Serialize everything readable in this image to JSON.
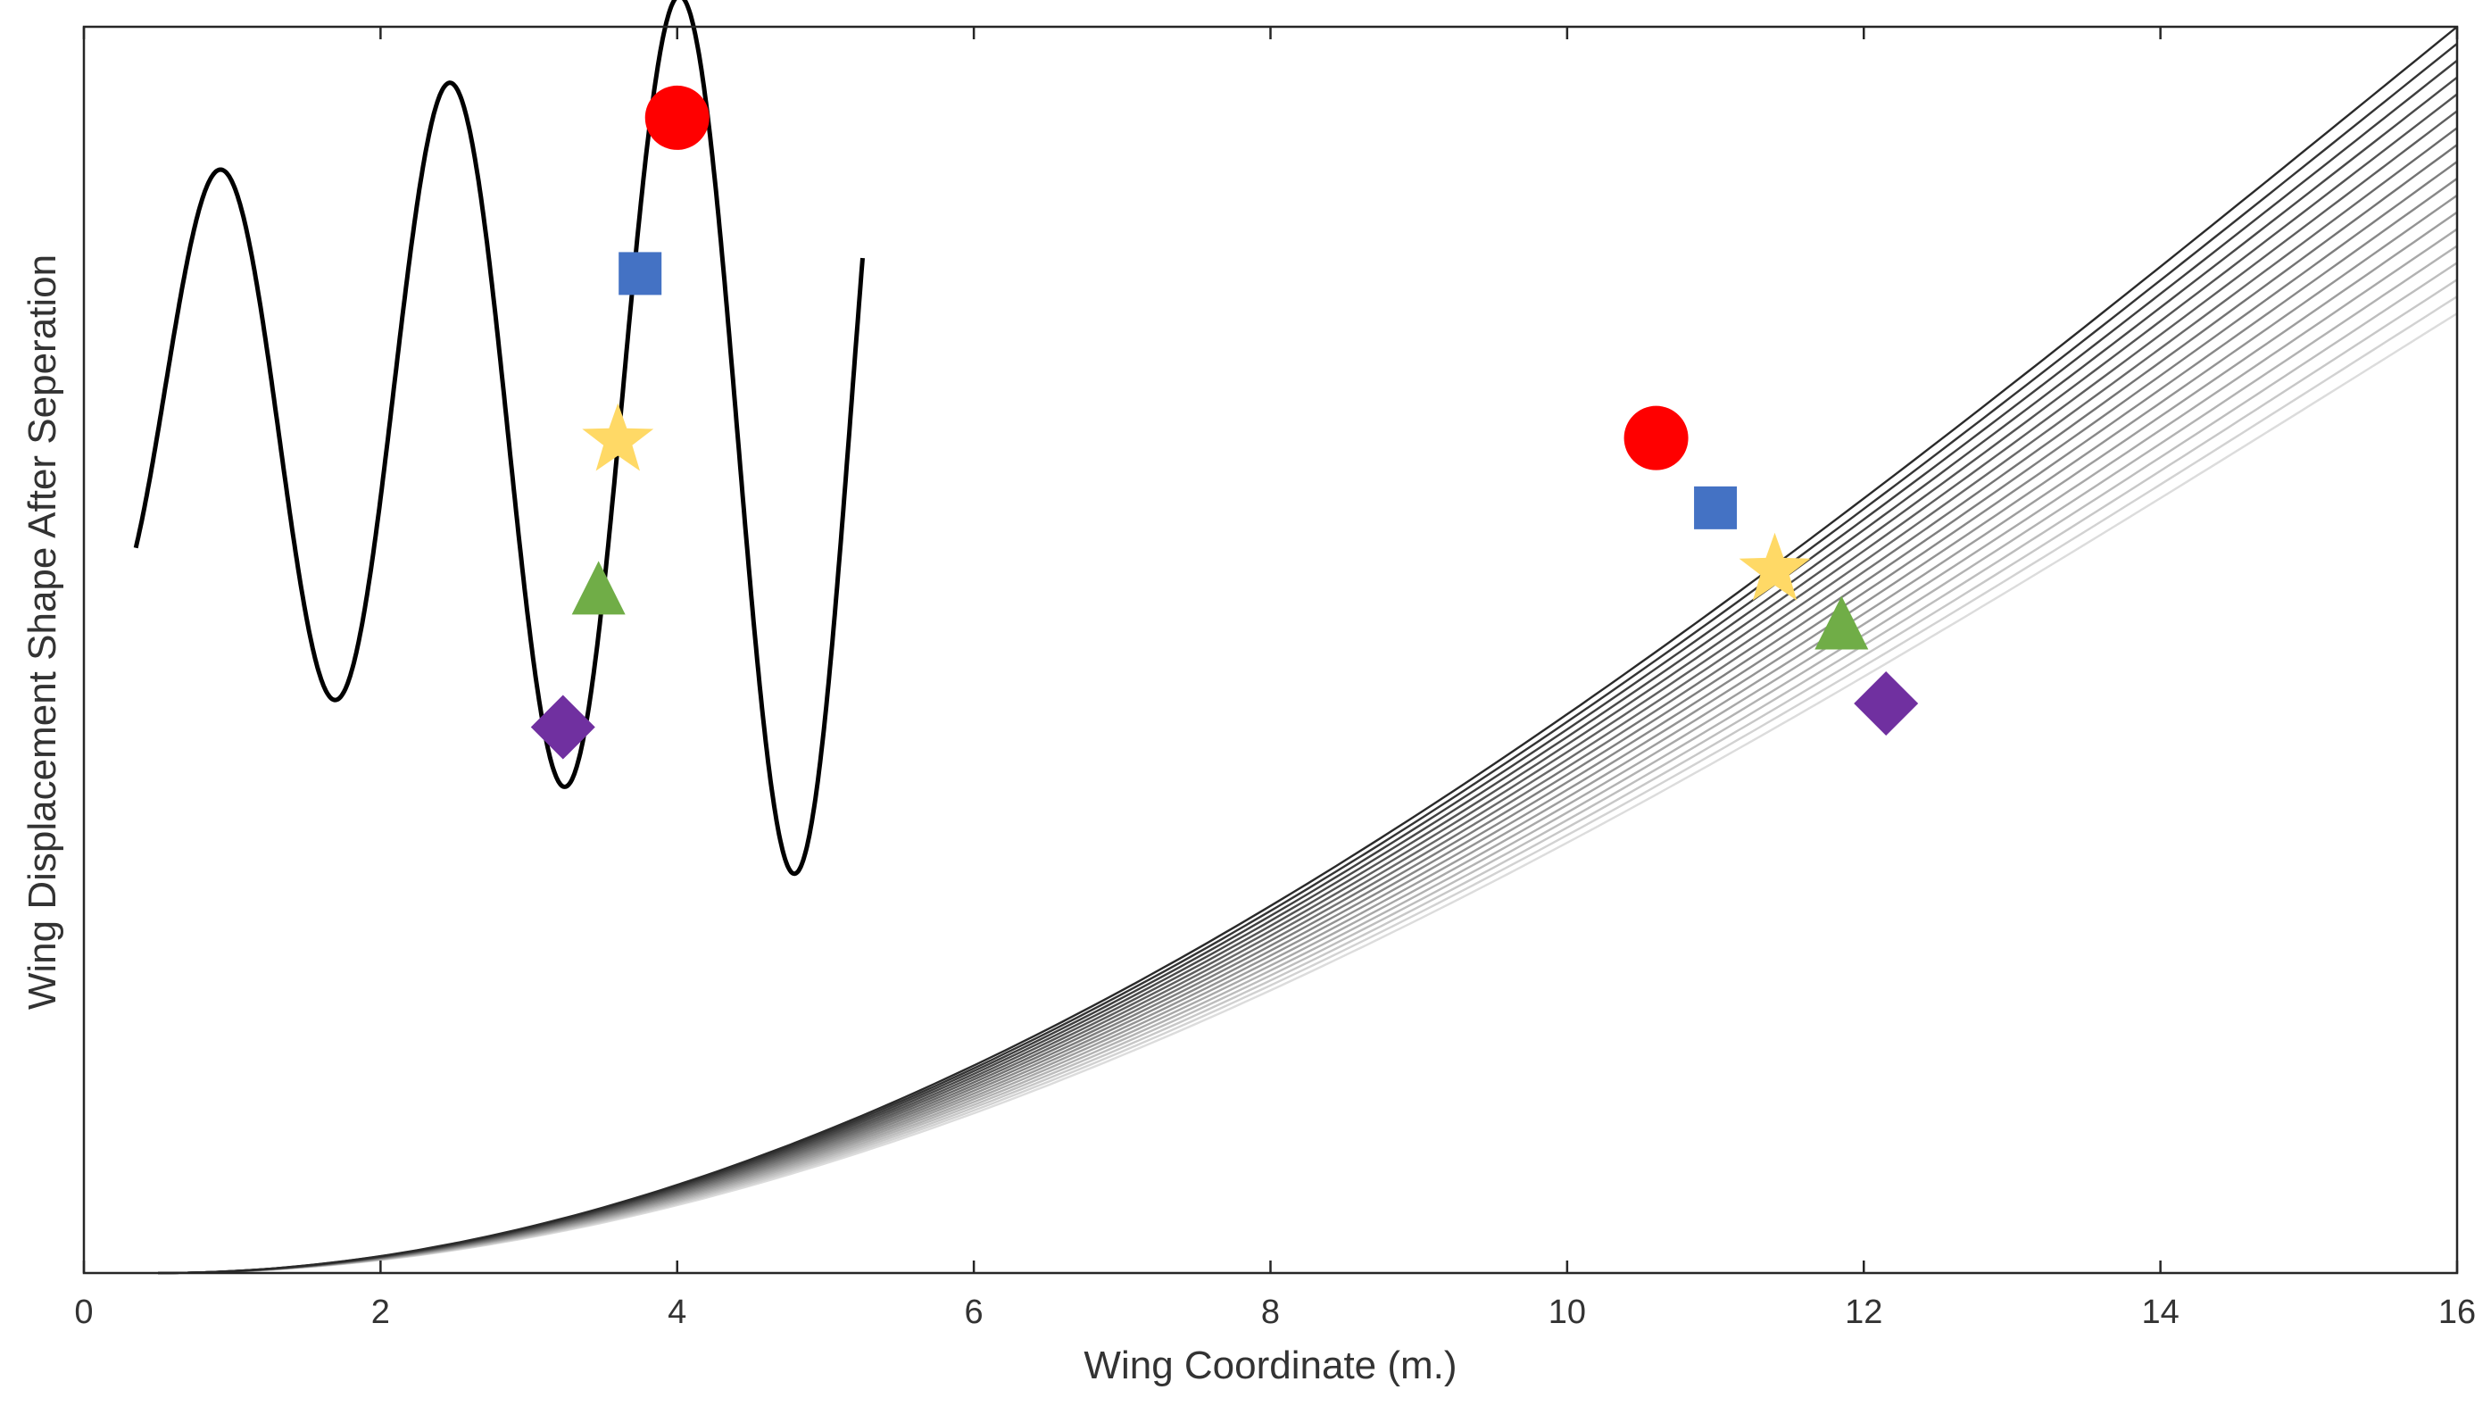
{
  "chart_data": {
    "type": "line",
    "title": "",
    "xlabel": "Wing Coordinate (m.)",
    "ylabel": "Wing Displacement Shape After Seperation",
    "xlim": [
      0,
      16
    ],
    "ylim": [
      0,
      1
    ],
    "x_ticks": [
      "0",
      "2",
      "4",
      "6",
      "8",
      "10",
      "12",
      "14",
      "16"
    ],
    "y_ticks": [],
    "grid": false,
    "displacement_family": {
      "count": 18,
      "x_start": 0.5,
      "x_end": 16,
      "y_end_first": 1.0,
      "y_end_last": 0.77,
      "shape": "cubic spline rising from zero slope at root",
      "color_first": "#2a2a2a",
      "color_last": "#dcdcdc"
    },
    "markers_on_family": [
      {
        "shape": "circle",
        "x": 10.6,
        "y": 0.67,
        "color": "#ff0000"
      },
      {
        "shape": "square",
        "x": 11.0,
        "y": 0.614,
        "color": "#4472c4"
      },
      {
        "shape": "star",
        "x": 11.4,
        "y": 0.564,
        "color": "#ffd966"
      },
      {
        "shape": "triangle",
        "x": 11.85,
        "y": 0.519,
        "color": "#70ad47"
      },
      {
        "shape": "diamond",
        "x": 12.15,
        "y": 0.457,
        "color": "#7030a0"
      }
    ],
    "inset_oscillation": {
      "x_start": 0.35,
      "x_end": 5.25,
      "color": "#000000",
      "description": "sinusoid with growing amplitude",
      "markers": [
        {
          "shape": "circle",
          "x": 4.0,
          "y": 0.927,
          "color": "#ff0000"
        },
        {
          "shape": "square",
          "x": 3.75,
          "y": 0.802,
          "color": "#4472c4"
        },
        {
          "shape": "star",
          "x": 3.6,
          "y": 0.668,
          "color": "#ffd966"
        },
        {
          "shape": "triangle",
          "x": 3.47,
          "y": 0.547,
          "color": "#70ad47"
        },
        {
          "shape": "diamond",
          "x": 3.23,
          "y": 0.438,
          "color": "#7030a0"
        }
      ]
    }
  }
}
